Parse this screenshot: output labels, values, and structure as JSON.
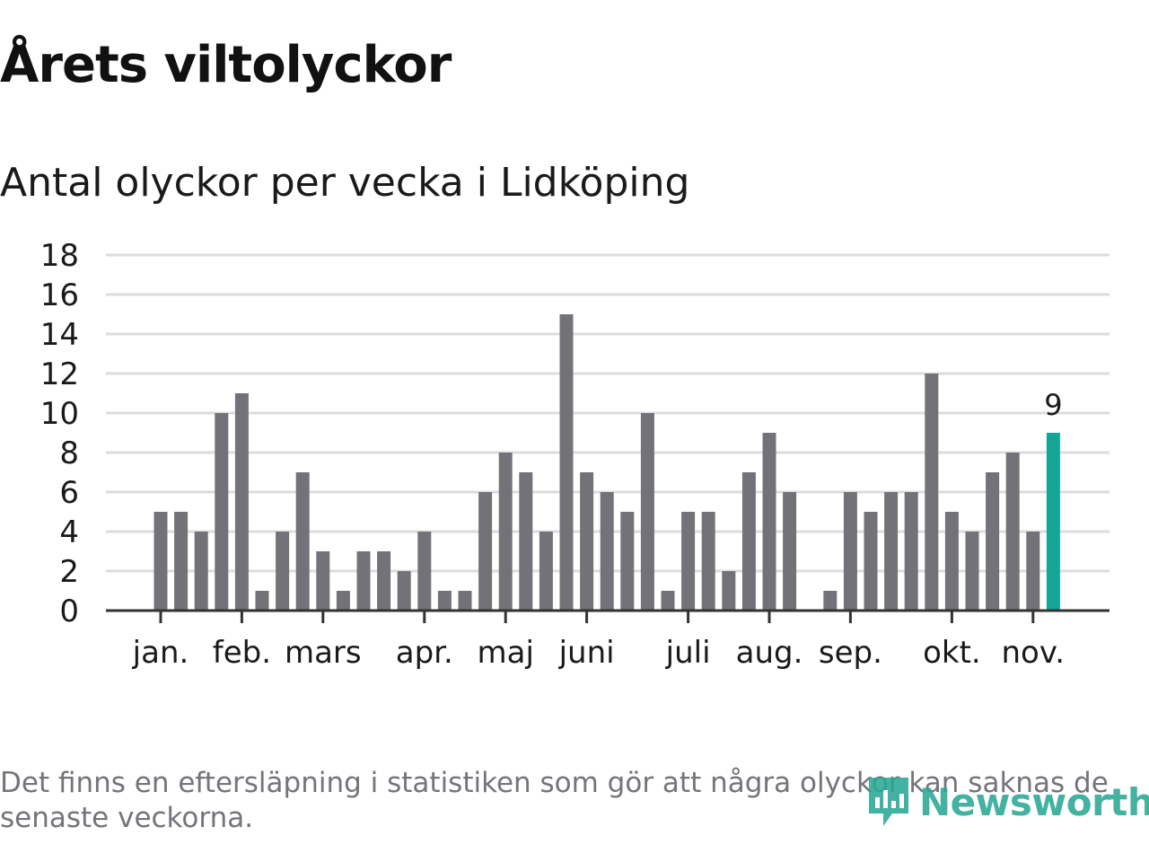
{
  "title": "Årets viltolyckor",
  "subtitle": "Antal olyckor per vecka i Lidköping",
  "note": "Det finns en eftersläpning i statistiken som gör att några olyckor kan saknas de senaste veckorna.",
  "brand": {
    "name": "Newsworthy",
    "icon": "newsworthy-logo-icon"
  },
  "colors": {
    "bar": "#737278",
    "highlight": "#13a596",
    "grid": "#dcdcdc",
    "axis": "#333333",
    "brand": "#2aa893"
  },
  "chart_data": {
    "type": "bar",
    "title": "Årets viltolyckor",
    "subtitle": "Antal olyckor per vecka i Lidköping",
    "xlabel": "",
    "ylabel": "",
    "ylim": [
      0,
      18
    ],
    "yticks": [
      0,
      2,
      4,
      6,
      8,
      10,
      12,
      14,
      16,
      18
    ],
    "grid": true,
    "values": [
      5,
      5,
      4,
      10,
      11,
      1,
      4,
      7,
      3,
      1,
      3,
      3,
      2,
      4,
      1,
      1,
      6,
      8,
      7,
      4,
      15,
      7,
      6,
      5,
      10,
      1,
      5,
      5,
      2,
      7,
      9,
      6,
      0,
      1,
      6,
      5,
      6,
      6,
      12,
      5,
      4,
      7,
      8,
      4,
      9
    ],
    "highlight_index": 44,
    "highlight_label": "9",
    "month_labels": [
      {
        "label": "jan.",
        "week": 1
      },
      {
        "label": "feb.",
        "week": 5
      },
      {
        "label": "mars",
        "week": 9
      },
      {
        "label": "apr.",
        "week": 14
      },
      {
        "label": "maj",
        "week": 18
      },
      {
        "label": "juni",
        "week": 22
      },
      {
        "label": "juli",
        "week": 27
      },
      {
        "label": "aug.",
        "week": 31
      },
      {
        "label": "sep.",
        "week": 35
      },
      {
        "label": "okt.",
        "week": 40
      },
      {
        "label": "nov.",
        "week": 44
      }
    ]
  }
}
